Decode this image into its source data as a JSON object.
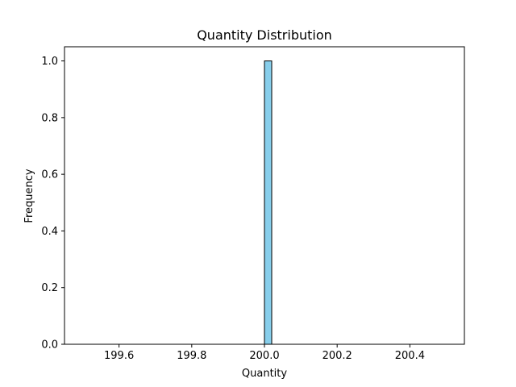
{
  "chart_data": {
    "type": "bar",
    "title": "Quantity Distribution",
    "xlabel": "Quantity",
    "ylabel": "Frequency",
    "xlim": [
      199.45,
      200.55
    ],
    "ylim": [
      0,
      1.05
    ],
    "xticks": [
      "199.6",
      "199.8",
      "200.0",
      "200.2",
      "200.4"
    ],
    "xtick_values": [
      199.6,
      199.8,
      200.0,
      200.2,
      200.4
    ],
    "yticks": [
      "0.0",
      "0.2",
      "0.4",
      "0.6",
      "0.8",
      "1.0"
    ],
    "ytick_values": [
      0.0,
      0.2,
      0.4,
      0.6,
      0.8,
      1.0
    ],
    "bins": {
      "start": 199.5,
      "end": 200.5,
      "count": 50
    },
    "series": [
      {
        "values": [
          {
            "x0": 200.0,
            "x1": 200.02,
            "y": 1
          }
        ]
      }
    ],
    "grid": false,
    "bar_color": "#87ceeb",
    "edge_color": "#000000"
  }
}
